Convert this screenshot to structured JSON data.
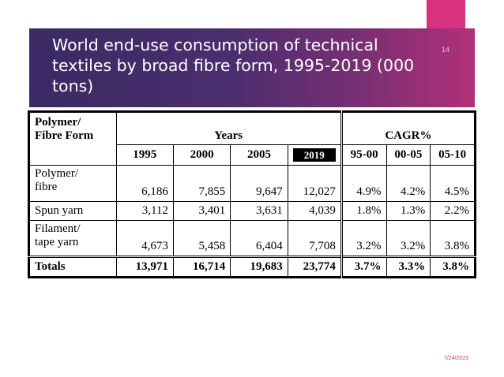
{
  "slide": {
    "title": "World end-use consumption of technical textiles by broad fibre form, 1995-2019 (000 tons)",
    "number": "14",
    "date": "7/24/2023"
  },
  "colors": {
    "accent": "#d8317f",
    "band_dark": "#3a2a63",
    "band_light": "#b23077"
  },
  "table": {
    "corner_label": [
      "Polymer/",
      "Fibre Form"
    ],
    "years_label": "Years",
    "cagr_label": "CAGR%",
    "year_headers": [
      "1995",
      "2000",
      "2005",
      "2019"
    ],
    "cagr_headers": [
      "95-00",
      "00-05",
      "05-10"
    ],
    "rows": [
      {
        "label": [
          "Polymer/",
          "fibre"
        ],
        "values": [
          "6,186",
          "7,855",
          "9,647",
          "12,027"
        ],
        "cagr": [
          "4.9%",
          "4.2%",
          "4.5%"
        ]
      },
      {
        "label": [
          "Spun yarn"
        ],
        "values": [
          "3,112",
          "3,401",
          "3,631",
          "4,039"
        ],
        "cagr": [
          "1.8%",
          "1.3%",
          "2.2%"
        ]
      },
      {
        "label": [
          "Filament/",
          "tape yarn"
        ],
        "values": [
          "4,673",
          "5,458",
          "6,404",
          "7,708"
        ],
        "cagr": [
          "3.2%",
          "3.2%",
          "3.8%"
        ]
      }
    ],
    "totals": {
      "label": "Totals",
      "values": [
        "13,971",
        "16,714",
        "19,683",
        "23,774"
      ],
      "cagr": [
        "3.7%",
        "3.3%",
        "3.8%"
      ]
    }
  }
}
